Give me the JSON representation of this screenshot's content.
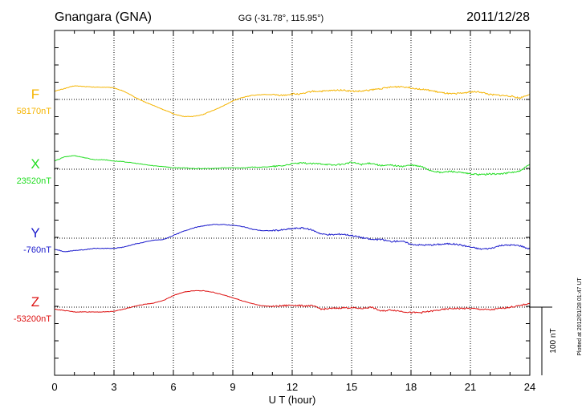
{
  "header": {
    "station": "Gnangara (GNA)",
    "coords": "GG (-31.78°, 115.95°)",
    "date": "2011/12/28"
  },
  "side_note": "Plotted at 2012/01/28 01:47 UT",
  "chart_data": {
    "type": "line",
    "title": "Gnangara (GNA)",
    "xlabel": "U T (hour)",
    "ylabel": "",
    "xlim": [
      0,
      24
    ],
    "x_ticks": [
      "0",
      "3",
      "6",
      "9",
      "12",
      "15",
      "18",
      "21",
      "24"
    ],
    "grid": true,
    "scale_bar": {
      "label": "100 nT",
      "value_nT": 100
    },
    "series": [
      {
        "name": "F",
        "baseline_label": "58170nT",
        "color": "#f5b400",
        "x": [
          0,
          0.5,
          1,
          1.5,
          2,
          2.5,
          3,
          3.5,
          4,
          4.5,
          5,
          5.5,
          6,
          6.5,
          7,
          7.5,
          8,
          8.5,
          9,
          9.5,
          10,
          10.5,
          11,
          11.5,
          12,
          12.5,
          13,
          13.5,
          14,
          14.5,
          15,
          15.5,
          16,
          16.5,
          17,
          17.5,
          18,
          18.5,
          19,
          19.5,
          20,
          20.5,
          21,
          21.5,
          22,
          22.5,
          23,
          23.5,
          24
        ],
        "y": [
          12,
          16,
          20,
          19,
          18,
          18,
          17,
          12,
          4,
          -3,
          -9,
          -15,
          -21,
          -25,
          -25,
          -22,
          -16,
          -10,
          -2,
          3,
          6,
          7,
          7,
          6,
          8,
          8,
          12,
          12,
          13,
          14,
          12,
          12,
          14,
          16,
          18,
          19,
          17,
          15,
          13,
          10,
          8,
          9,
          11,
          11,
          7,
          6,
          5,
          2,
          8
        ]
      },
      {
        "name": "X",
        "baseline_label": "23520nT",
        "color": "#22dd22",
        "x": [
          0,
          0.5,
          1,
          1.5,
          2,
          2.5,
          3,
          3.5,
          4,
          4.5,
          5,
          5.5,
          6,
          6.5,
          7,
          7.5,
          8,
          8.5,
          9,
          9.5,
          10,
          10.5,
          11,
          11.5,
          12,
          12.5,
          13,
          13.5,
          14,
          14.5,
          15,
          15.5,
          16,
          16.5,
          17,
          17.5,
          18,
          18.5,
          19,
          19.5,
          20,
          20.5,
          21,
          21.5,
          22,
          22.5,
          23,
          23.5,
          24
        ],
        "y": [
          12,
          18,
          20,
          17,
          14,
          14,
          12,
          11,
          9,
          7,
          5,
          4,
          2,
          2,
          1,
          1,
          1,
          2,
          2,
          2,
          3,
          3,
          4,
          5,
          8,
          9,
          8,
          8,
          6,
          7,
          10,
          7,
          9,
          5,
          6,
          4,
          6,
          4,
          -2,
          -5,
          -3,
          -5,
          -7,
          -8,
          -7,
          -7,
          -5,
          -3,
          7
        ]
      },
      {
        "name": "Y",
        "baseline_label": "-760nT",
        "color": "#1a1acc",
        "x": [
          0,
          0.5,
          1,
          1.5,
          2,
          2.5,
          3,
          3.5,
          4,
          4.5,
          5,
          5.5,
          6,
          6.5,
          7,
          7.5,
          8,
          8.5,
          9,
          9.5,
          10,
          10.5,
          11,
          11.5,
          12,
          12.5,
          13,
          13.5,
          14,
          14.5,
          15,
          15.5,
          16,
          16.5,
          17,
          17.5,
          18,
          18.5,
          19,
          19.5,
          20,
          20.5,
          21,
          21.5,
          22,
          22.5,
          23,
          23.5,
          24
        ],
        "y": [
          -16,
          -20,
          -18,
          -17,
          -15,
          -15,
          -15,
          -13,
          -9,
          -6,
          -3,
          -2,
          4,
          10,
          15,
          18,
          20,
          20,
          19,
          17,
          13,
          11,
          11,
          12,
          14,
          15,
          12,
          6,
          5,
          6,
          4,
          1,
          -2,
          -2,
          -5,
          -4,
          -9,
          -10,
          -10,
          -9,
          -8,
          -10,
          -13,
          -16,
          -15,
          -11,
          -10,
          -11,
          -16
        ]
      },
      {
        "name": "Z",
        "baseline_label": "-53200nT",
        "color": "#dd1111",
        "x": [
          0,
          0.5,
          1,
          1.5,
          2,
          2.5,
          3,
          3.5,
          4,
          4.5,
          5,
          5.5,
          6,
          6.5,
          7,
          7.5,
          8,
          8.5,
          9,
          9.5,
          10,
          10.5,
          11,
          11.5,
          12,
          12.5,
          13,
          13.5,
          14,
          14.5,
          15,
          15.5,
          16,
          16.5,
          17,
          17.5,
          18,
          18.5,
          19,
          19.5,
          20,
          20.5,
          21,
          21.5,
          22,
          22.5,
          23,
          23.5,
          24
        ],
        "y": [
          -3,
          -5,
          -7,
          -7,
          -7,
          -7,
          -6,
          -3,
          1,
          4,
          6,
          10,
          17,
          22,
          24,
          24,
          22,
          18,
          14,
          9,
          5,
          2,
          1,
          2,
          3,
          2,
          2,
          -3,
          -2,
          -1,
          -1,
          -2,
          0,
          -6,
          -4,
          -6,
          -8,
          -8,
          -6,
          -4,
          -2,
          -2,
          -2,
          -3,
          -4,
          -2,
          0,
          2,
          6
        ]
      }
    ]
  }
}
